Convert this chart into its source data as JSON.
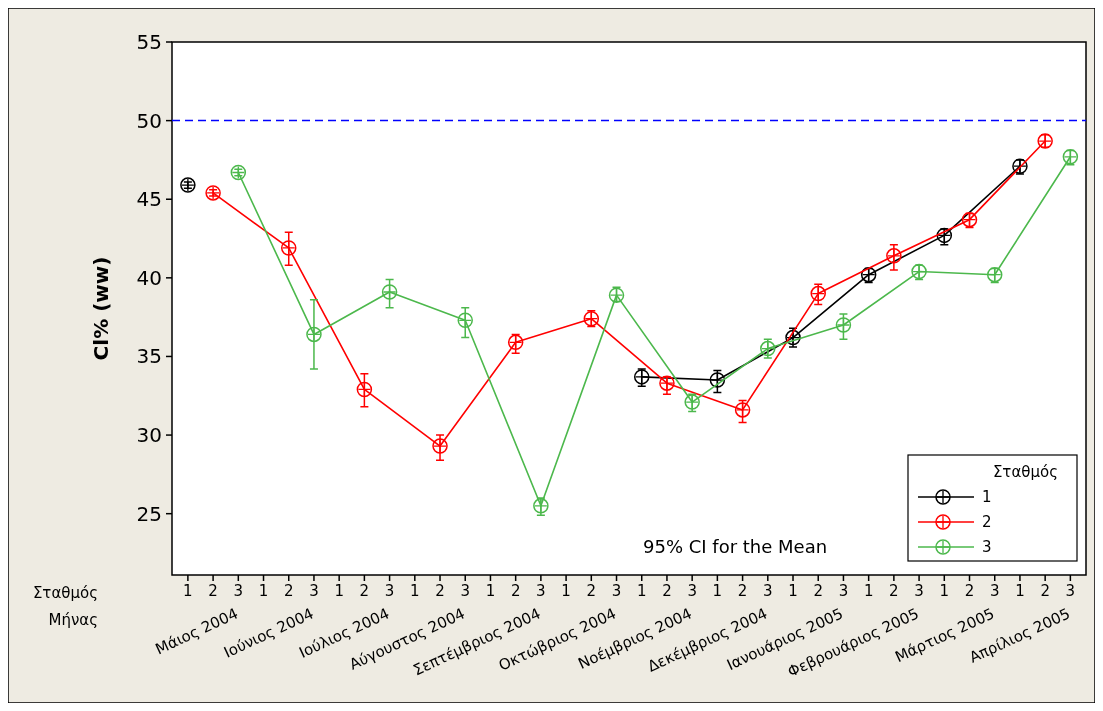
{
  "chart_data": {
    "type": "line",
    "ylabel": "Cl% (ww)",
    "legend_title": "Σταθμός",
    "legend": "bottom right",
    "marker": "circle",
    "line_style": "solid",
    "grid": false,
    "ylim": [
      21.1,
      55
    ],
    "yticks": [
      25,
      30,
      35,
      40,
      45,
      50,
      55
    ],
    "categories": [
      "1",
      "2",
      "3",
      "1",
      "2",
      "3",
      "1",
      "2",
      "3",
      "1",
      "2",
      "3",
      "1",
      "2",
      "3",
      "1",
      "2",
      "3",
      "1",
      "2",
      "3",
      "1",
      "2",
      "3",
      "1",
      "2",
      "3",
      "1",
      "2",
      "3",
      "1",
      "2",
      "3",
      "1",
      "2",
      "3"
    ],
    "ref_lines": [
      {
        "axis": "y",
        "value": 50,
        "color": "#0000ff",
        "line_style": "dashed"
      }
    ],
    "series": [
      {
        "name": "1",
        "color": "#000000",
        "values": [
          null,
          null,
          null,
          null,
          null,
          null,
          null,
          null,
          null,
          null,
          null,
          null,
          null,
          null,
          null,
          null,
          null,
          null,
          33.7,
          null,
          null,
          33.5,
          null,
          null,
          36.2,
          null,
          null,
          40.2,
          null,
          null,
          42.7,
          null,
          null,
          47.1,
          null,
          null
        ],
        "errors": [
          null,
          null,
          null,
          null,
          null,
          null,
          null,
          null,
          null,
          null,
          null,
          null,
          null,
          null,
          null,
          null,
          null,
          null,
          [
            33.1,
            34.2
          ],
          null,
          null,
          [
            32.7,
            34.1
          ],
          null,
          null,
          [
            35.6,
            36.8
          ],
          null,
          null,
          [
            39.7,
            40.6
          ],
          null,
          null,
          [
            42.1,
            43.1
          ],
          null,
          null,
          [
            46.6,
            47.5
          ],
          null,
          null
        ]
      },
      {
        "color": "#000000",
        "values": [
          45.9,
          null,
          null,
          null,
          null,
          null,
          null,
          null,
          null,
          null,
          null,
          null,
          null,
          null,
          null,
          null,
          null,
          null,
          null,
          null,
          null,
          null,
          null,
          null,
          null,
          null,
          null,
          null,
          null,
          null,
          null,
          null,
          null,
          null,
          null,
          null
        ],
        "errors": [
          [
            45.7,
            46.1
          ],
          null,
          null,
          null,
          null,
          null,
          null,
          null,
          null,
          null,
          null,
          null,
          null,
          null,
          null,
          null,
          null,
          null,
          null,
          null,
          null,
          null,
          null,
          null,
          null,
          null,
          null,
          null,
          null,
          null,
          null,
          null,
          null,
          null,
          null,
          null
        ]
      },
      {
        "name": "2",
        "color": "#ff0000",
        "values": [
          null,
          45.4,
          null,
          null,
          41.9,
          null,
          null,
          32.9,
          null,
          null,
          29.3,
          null,
          null,
          35.9,
          null,
          null,
          37.4,
          null,
          null,
          33.3,
          null,
          null,
          31.6,
          null,
          null,
          39.0,
          null,
          null,
          41.4,
          null,
          null,
          43.7,
          null,
          null,
          48.7,
          null
        ],
        "errors": [
          null,
          [
            45.2,
            45.6
          ],
          null,
          null,
          [
            40.8,
            42.9
          ],
          null,
          null,
          [
            31.8,
            33.9
          ],
          null,
          null,
          [
            28.4,
            30.0
          ],
          null,
          null,
          [
            35.2,
            36.4
          ],
          null,
          null,
          [
            36.9,
            37.9
          ],
          null,
          null,
          [
            32.6,
            33.7
          ],
          null,
          null,
          [
            30.8,
            32.2
          ],
          null,
          null,
          [
            38.3,
            39.6
          ],
          null,
          null,
          [
            40.5,
            42.1
          ],
          null,
          null,
          [
            43.2,
            44.1
          ],
          null,
          null,
          [
            48.3,
            49.1
          ],
          null
        ]
      },
      {
        "name": "3",
        "color": "#4cb84c",
        "values": [
          null,
          null,
          46.7,
          null,
          null,
          36.4,
          null,
          null,
          39.1,
          null,
          null,
          37.3,
          null,
          null,
          25.5,
          null,
          null,
          38.9,
          null,
          null,
          32.1,
          null,
          null,
          35.5,
          null,
          null,
          37.0,
          null,
          null,
          40.4,
          null,
          null,
          40.2,
          null,
          null,
          47.7
        ],
        "errors": [
          null,
          null,
          [
            46.5,
            46.9
          ],
          null,
          null,
          [
            34.2,
            38.6
          ],
          null,
          null,
          [
            38.1,
            39.9
          ],
          null,
          null,
          [
            36.2,
            38.1
          ],
          null,
          null,
          [
            24.9,
            26.0
          ],
          null,
          null,
          [
            38.5,
            39.4
          ],
          null,
          null,
          [
            31.5,
            32.6
          ],
          null,
          null,
          [
            34.9,
            36.1
          ],
          null,
          null,
          [
            36.1,
            37.7
          ],
          null,
          null,
          [
            39.9,
            40.8
          ],
          null,
          null,
          [
            39.7,
            40.6
          ],
          null,
          null,
          [
            47.2,
            48.1
          ]
        ]
      }
    ],
    "annotations": [
      "Σταθμός",
      "Μήνας",
      "Μάιος 2004",
      "Ιούνιος 2004",
      "Ιούλιος 2004",
      "Αύγουστος 2004",
      "Σεπτέμβριος 2004",
      "Οκτώβριος 2004",
      "Νοέμβριος 2004",
      "Δεκέμβριος 2004",
      "Ιανουάριος 2005",
      "Φεβρουάριος 2005",
      "Μάρτιος 2005",
      "Απρίλιος 2005",
      "95% CI for the Mean"
    ]
  }
}
